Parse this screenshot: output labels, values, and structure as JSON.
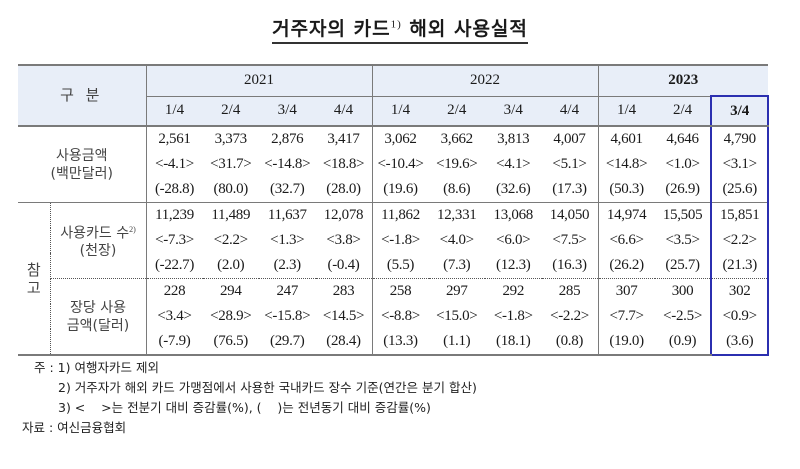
{
  "title": {
    "text": "거주자의 카드",
    "superscript": "1)",
    "suffix": "해외 사용실적"
  },
  "header": {
    "category_label": "구   분",
    "years": [
      {
        "label": "2021",
        "quarters": [
          "1/4",
          "2/4",
          "3/4",
          "4/4"
        ]
      },
      {
        "label": "2022",
        "quarters": [
          "1/4",
          "2/4",
          "3/4",
          "4/4"
        ]
      },
      {
        "label": "2023",
        "quarters": [
          "1/4",
          "2/4",
          "3/4"
        ]
      }
    ],
    "highlight_column": "2023 3/4"
  },
  "rows": [
    {
      "label_line1": "사용금액",
      "label_line2": "(백만달러)",
      "values": [
        "2,561",
        "3,373",
        "2,876",
        "3,417",
        "3,062",
        "3,662",
        "3,813",
        "4,007",
        "4,601",
        "4,646",
        "4,790"
      ],
      "qoq": [
        "<-4.1>",
        "<31.7>",
        "<-14.8>",
        "<18.8>",
        "<-10.4>",
        "<19.6>",
        "<4.1>",
        "<5.1>",
        "<14.8>",
        "<1.0>",
        "<3.1>"
      ],
      "yoy": [
        "(-28.8)",
        "(80.0)",
        "(32.7)",
        "(28.0)",
        "(19.6)",
        "(8.6)",
        "(32.6)",
        "(17.3)",
        "(50.3)",
        "(26.9)",
        "(25.6)"
      ]
    },
    {
      "group_label_top": "참",
      "group_label_bottom": "고",
      "label_line1": "사용카드 수",
      "label_sup": "2)",
      "label_line2": "(천장)",
      "values": [
        "11,239",
        "11,489",
        "11,637",
        "12,078",
        "11,862",
        "12,331",
        "13,068",
        "14,050",
        "14,974",
        "15,505",
        "15,851"
      ],
      "qoq": [
        "<-7.3>",
        "<2.2>",
        "<1.3>",
        "<3.8>",
        "<-1.8>",
        "<4.0>",
        "<6.0>",
        "<7.5>",
        "<6.6>",
        "<3.5>",
        "<2.2>"
      ],
      "yoy": [
        "(-22.7)",
        "(2.0)",
        "(2.3)",
        "(-0.4)",
        "(5.5)",
        "(7.3)",
        "(12.3)",
        "(16.3)",
        "(26.2)",
        "(25.7)",
        "(21.3)"
      ]
    },
    {
      "label_line1": "장당 사용",
      "label_line2": "금액(달러)",
      "values": [
        "228",
        "294",
        "247",
        "283",
        "258",
        "297",
        "292",
        "285",
        "307",
        "300",
        "302"
      ],
      "qoq": [
        "<3.4>",
        "<28.9>",
        "<-15.8>",
        "<14.5>",
        "<-8.8>",
        "<15.0>",
        "<-1.8>",
        "<-2.2>",
        "<7.7>",
        "<-2.5>",
        "<0.9>"
      ],
      "yoy": [
        "(-7.9)",
        "(76.5)",
        "(29.7)",
        "(28.4)",
        "(13.3)",
        "(1.1)",
        "(18.1)",
        "(0.8)",
        "(19.0)",
        "(0.9)",
        "(3.6)"
      ]
    }
  ],
  "notes": {
    "prefix": "주 :",
    "items": [
      "1) 여행자카드 제외",
      "2) 거주자가 해외 카드 가맹점에서 사용한 국내카드 장수 기준(연간은 분기 합산)",
      "3) <    >는 전분기 대비 증감률(%), (    )는 전년동기 대비 증감률(%)"
    ],
    "source": "자료 : 여신금융협회"
  }
}
